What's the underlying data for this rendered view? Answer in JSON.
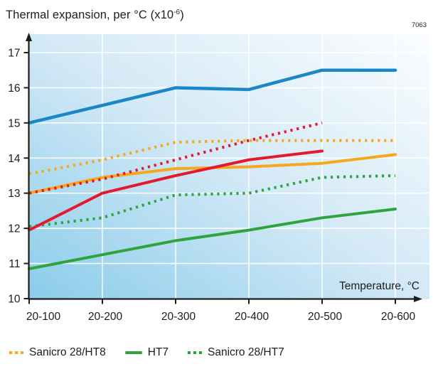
{
  "header": {
    "title_main": "Thermal expansion, per °C (x10",
    "title_sup": "-6",
    "title_end": ")",
    "ref_number": "7063"
  },
  "chart_data": {
    "type": "line",
    "title": "Thermal expansion, per °C (x10^-6)",
    "xlabel": "Temperature, °C",
    "ylabel": "Thermal expansion, per °C (x10^-6)",
    "categories": [
      "20-100",
      "20-200",
      "20-300",
      "20-400",
      "20-500",
      "20-600"
    ],
    "ylim": [
      10,
      17
    ],
    "yticks": [
      10,
      11,
      12,
      13,
      14,
      15,
      16,
      17
    ],
    "grid": "white gridlines on blue gradient background",
    "legend_position": "bottom",
    "series": [
      {
        "key": "orange-solid",
        "legend_label": null,
        "appearance": "orange solid, unlabeled",
        "color": "#f6a81c",
        "style": "solid",
        "values": [
          13.0,
          13.45,
          13.7,
          13.75,
          13.85,
          14.1
        ]
      },
      {
        "key": "green-solid",
        "legend_label": "HT7",
        "appearance": "green solid",
        "color": "#2fa43c",
        "style": "solid",
        "values": [
          10.85,
          11.25,
          11.65,
          11.95,
          12.3,
          12.55
        ]
      },
      {
        "key": "green-dotted",
        "legend_label": "Sanicro 28/HT7",
        "appearance": "green dotted",
        "color": "#2fa43c",
        "style": "dotted",
        "values": [
          12.05,
          12.3,
          12.95,
          13.0,
          13.45,
          13.5
        ]
      },
      {
        "key": "orange-dotted",
        "legend_label": "Sanicro 28/HT8",
        "appearance": "orange dotted",
        "color": "#f6a81c",
        "style": "dotted",
        "values": [
          13.55,
          13.95,
          14.45,
          14.5,
          14.5,
          14.5
        ]
      },
      {
        "key": "blue-solid",
        "legend_label": null,
        "appearance": "blue solid, unlabeled",
        "color": "#1a87c8",
        "style": "solid",
        "values": [
          15.0,
          15.5,
          16.0,
          15.95,
          16.5,
          16.5
        ]
      },
      {
        "key": "red-solid",
        "legend_label": null,
        "appearance": "red solid, unlabeled",
        "color": "#e5192d",
        "style": "solid",
        "values": [
          11.95,
          13.0,
          13.5,
          13.95,
          14.2,
          null
        ]
      },
      {
        "key": "red-dotted",
        "legend_label": null,
        "appearance": "red dotted, unlabeled",
        "color": "#e5192d",
        "style": "dotted",
        "values": [
          13.0,
          13.4,
          13.95,
          14.5,
          15.0,
          null
        ]
      }
    ],
    "colors": {
      "axis": "#1d1d1b",
      "gridline": "#ffffff",
      "bg_gradient_bottom_left": "#8accea",
      "bg_gradient_mid": "#d3e9f6",
      "bg_gradient_top_right": "#fbfdff",
      "blue": "#1a87c8",
      "red": "#e5192d",
      "orange": "#f6a81c",
      "green": "#2fa43c"
    }
  },
  "legend": {
    "items": [
      {
        "label": "Sanicro 28/HT8",
        "style": "dotted",
        "color": "#f6a81c"
      },
      {
        "label": "HT7",
        "style": "solid",
        "color": "#2fa43c"
      },
      {
        "label": "Sanicro 28/HT7",
        "style": "dotted",
        "color": "#2fa43c"
      }
    ]
  }
}
